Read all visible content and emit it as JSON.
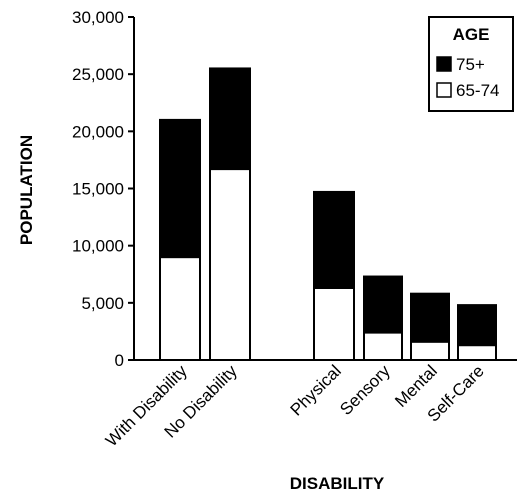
{
  "chart_data": {
    "type": "bar",
    "stacked": true,
    "categories": [
      "With Disability",
      "No Disability",
      "Physical",
      "Sensory",
      "Mental",
      "Self-Care"
    ],
    "series": [
      {
        "name": "65-74",
        "values": [
          9000,
          16700,
          6300,
          2400,
          1600,
          1300
        ],
        "color": "#ffffff"
      },
      {
        "name": "75+",
        "values": [
          12000,
          8800,
          8400,
          4900,
          4200,
          3500
        ],
        "color": "#000000"
      }
    ],
    "xlabel": "DISABILITY",
    "ylabel": "POPULATION",
    "ylim": [
      0,
      30000
    ],
    "yticks": [
      "0",
      "5,000",
      "10,000",
      "15,000",
      "20,000",
      "25,000",
      "30,000"
    ],
    "legend": {
      "title": "AGE",
      "position": "top-right",
      "order": [
        "75+",
        "65-74"
      ]
    },
    "grid": false
  }
}
